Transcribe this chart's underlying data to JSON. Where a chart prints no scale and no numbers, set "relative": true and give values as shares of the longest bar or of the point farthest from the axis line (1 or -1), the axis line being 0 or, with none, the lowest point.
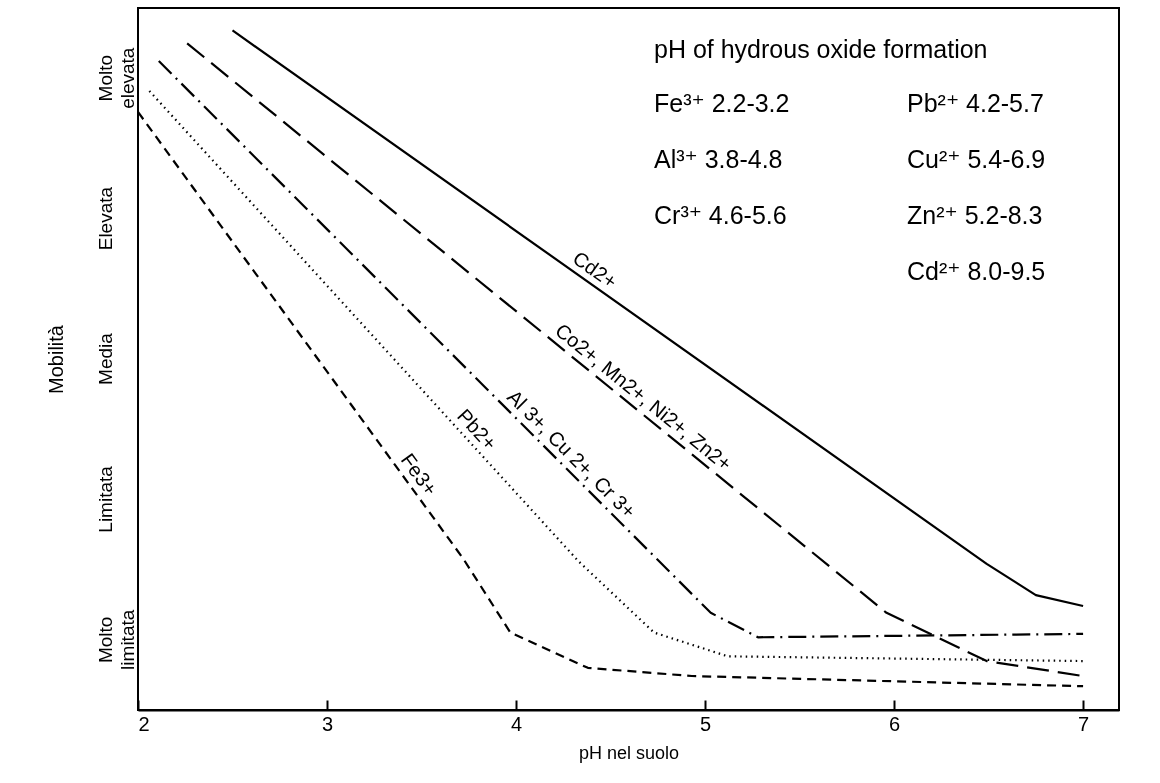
{
  "chart_data": {
    "type": "line",
    "xlabel": "pH nel suolo",
    "ylabel": "Mobilità",
    "xlim": [
      2,
      7.19
    ],
    "xticks": [
      2,
      3,
      4,
      5,
      6,
      7
    ],
    "relative": true,
    "grid": false,
    "marker": "none",
    "annotations": [
      "pH of hydrous oxide formation",
      "Fe³⁺ 2.2-3.2",
      "Pb²⁺ 4.2-5.7",
      "Al³⁺ 3.8-4.8",
      "Cu²⁺ 5.4-6.9",
      "Cr³⁺ 4.6-5.6",
      "Zn²⁺ 5.2-8.3",
      "Cd²⁺ 8.0-9.5",
      "Molto elevata",
      "Elevata",
      "Media",
      "Limitata",
      "Molto limitata"
    ],
    "series": [
      {
        "name": "Cd2+",
        "color": "#000000",
        "line_style": "solid",
        "x": [
          2.5,
          6.49,
          6.75,
          7.0
        ],
        "values": [
          1.0,
          0.215,
          0.169,
          0.153
        ]
      },
      {
        "name": "Co2+, Mn2+, Ni2+, Zn2+",
        "color": "#000000",
        "line_style": "longdash",
        "x": [
          2.26,
          5.96,
          6.49,
          7.0
        ],
        "values": [
          0.981,
          0.143,
          0.072,
          0.05
        ]
      },
      {
        "name": "Al 3+, Cu 2+, Cr 3+",
        "color": "#000000",
        "line_style": "dashdot",
        "x": [
          2.11,
          5.03,
          5.28,
          7.0
        ],
        "values": [
          0.955,
          0.143,
          0.107,
          0.112
        ]
      },
      {
        "name": "Pb2+",
        "color": "#000000",
        "line_style": "dotted",
        "x": [
          2.06,
          4.33,
          4.73,
          5.12,
          7.0
        ],
        "values": [
          0.911,
          0.219,
          0.114,
          0.079,
          0.072
        ]
      },
      {
        "name": "Fe3+",
        "color": "#000000",
        "line_style": "dashed",
        "x": [
          2.0,
          3.72,
          3.97,
          4.38,
          4.93,
          7.0
        ],
        "values": [
          0.88,
          0.223,
          0.114,
          0.062,
          0.05,
          0.035
        ]
      }
    ]
  }
}
